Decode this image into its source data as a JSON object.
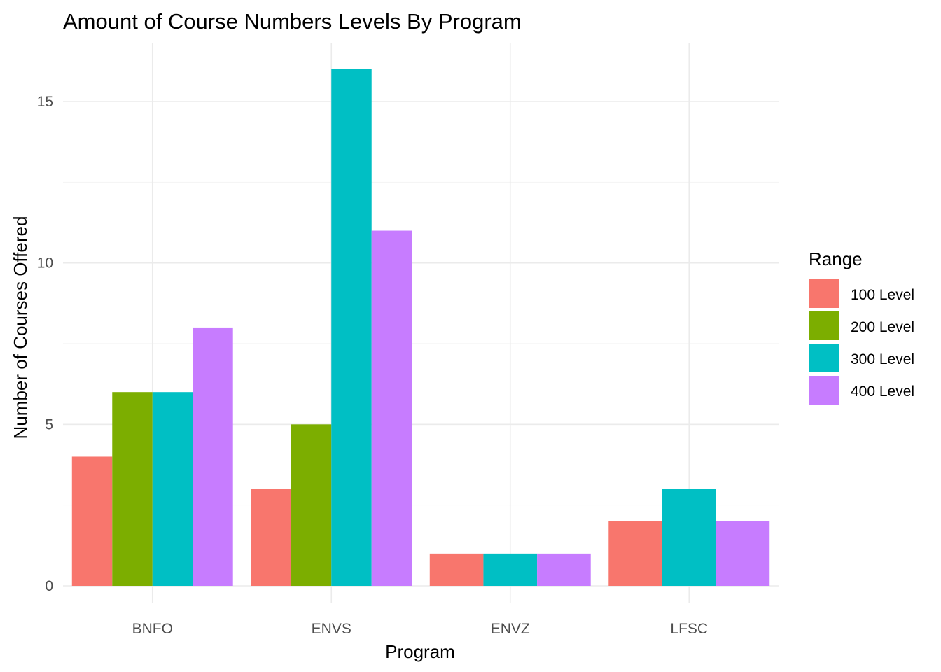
{
  "chart_data": {
    "type": "bar",
    "title": "Amount of Course Numbers Levels By Program",
    "xlabel": "Program",
    "ylabel": "Number of Courses Offered",
    "categories": [
      "BNFO",
      "ENVS",
      "ENVZ",
      "LFSC"
    ],
    "ylim": [
      0,
      16.8
    ],
    "yticks": [
      0,
      5,
      10,
      15
    ],
    "grid": true,
    "legend": {
      "title": "Range",
      "placement": "right"
    },
    "series": [
      {
        "name": "100 Level",
        "color": "#F8766D",
        "values": [
          4,
          3,
          1,
          2
        ]
      },
      {
        "name": "200 Level",
        "color": "#7CAE00",
        "values": [
          6,
          5,
          null,
          null
        ]
      },
      {
        "name": "300 Level",
        "color": "#00BFC4",
        "values": [
          6,
          16,
          1,
          3
        ]
      },
      {
        "name": "400 Level",
        "color": "#C77CFF",
        "values": [
          8,
          11,
          1,
          2
        ]
      }
    ]
  }
}
